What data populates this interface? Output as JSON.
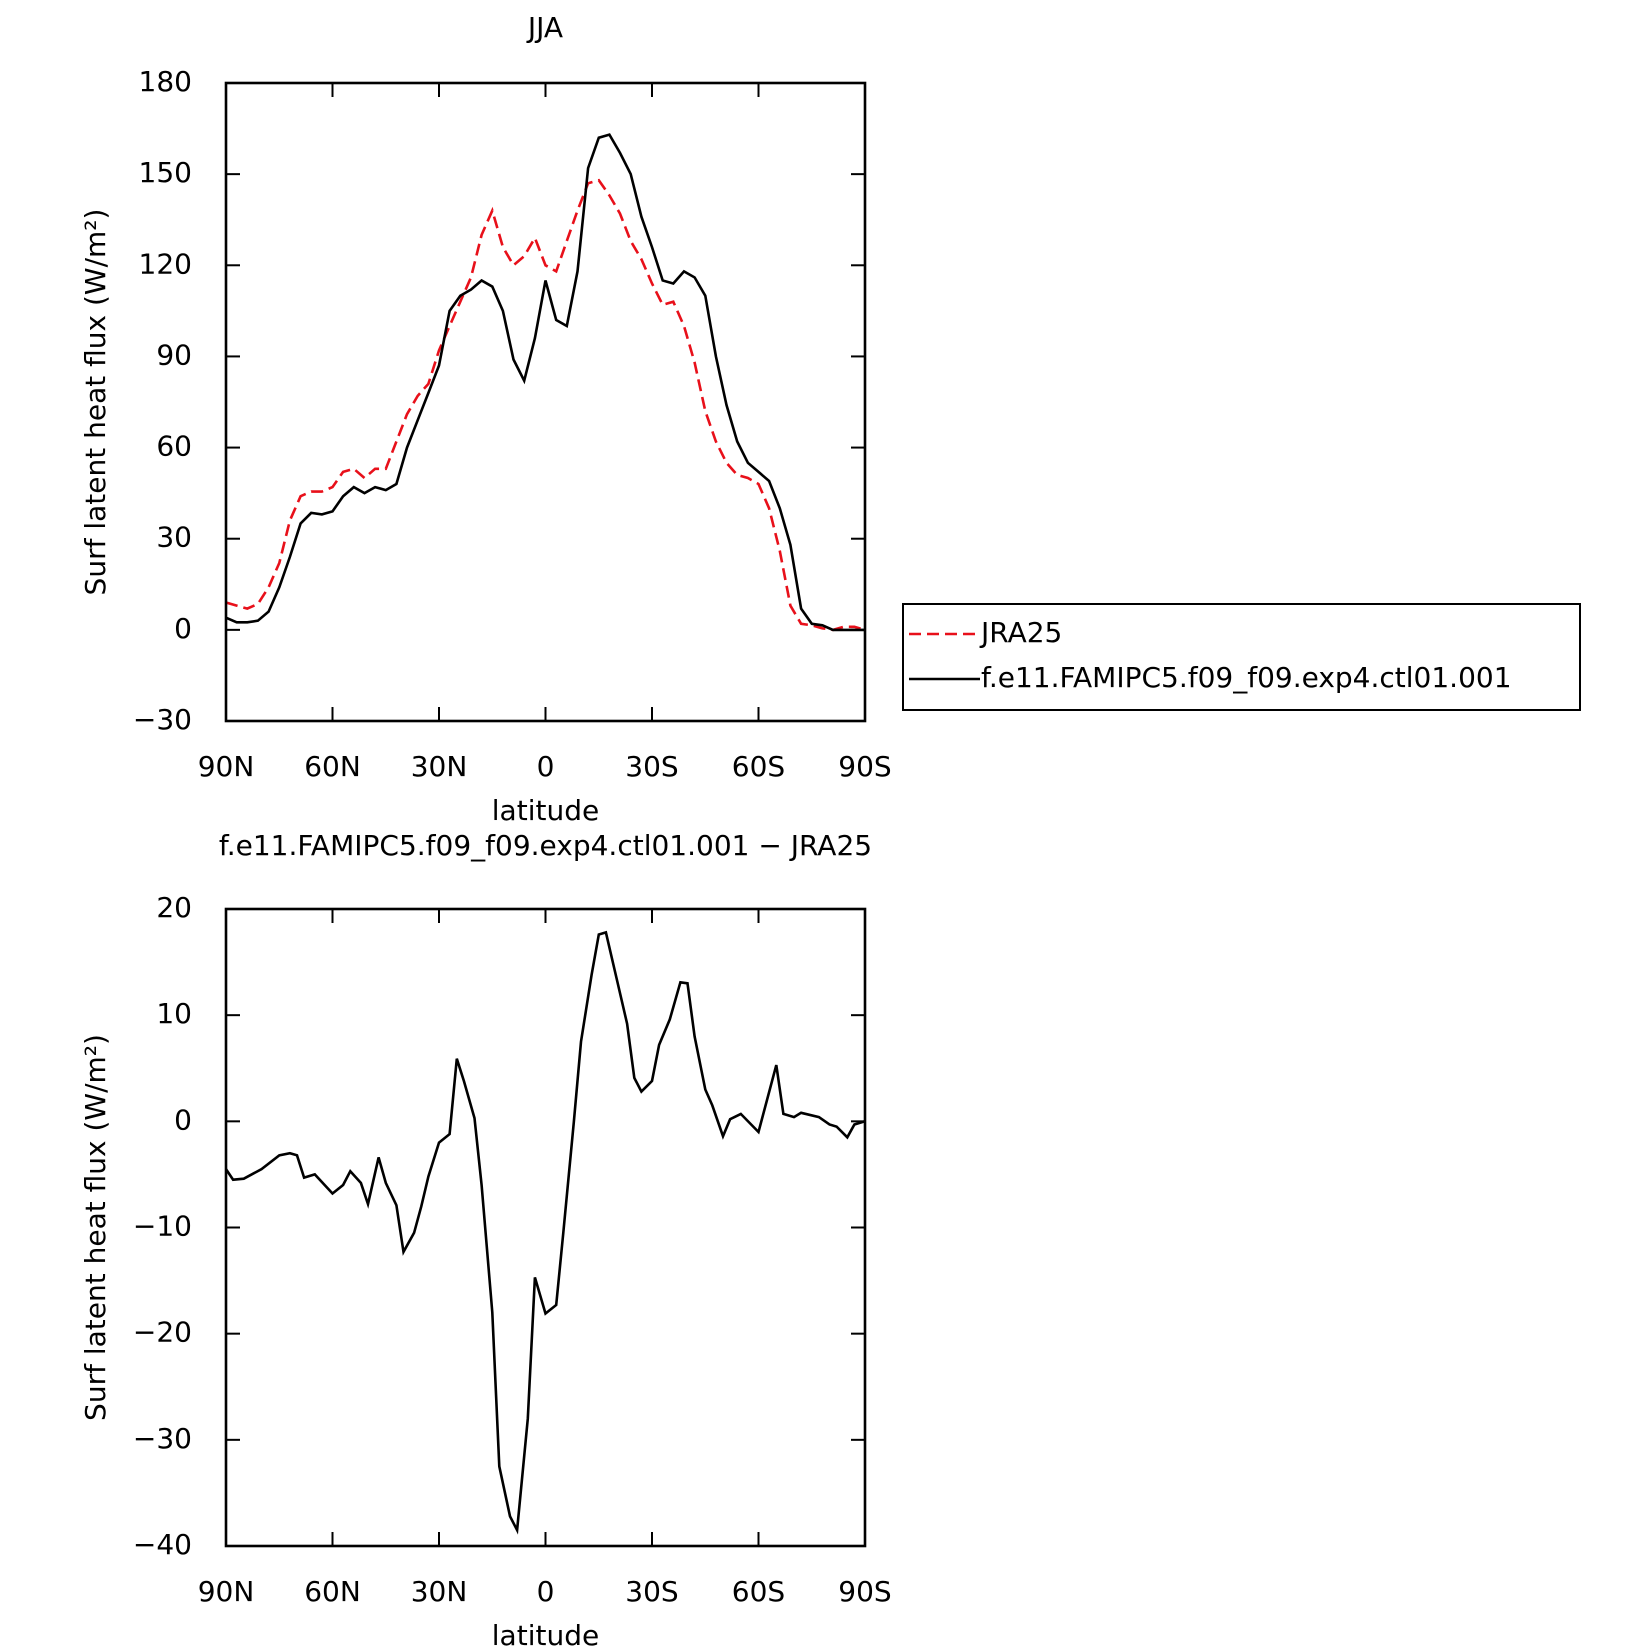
{
  "chart_data": [
    {
      "type": "line",
      "title": "JJA",
      "ylabel": "Surf latent heat flux (W/m²)",
      "xlabel": "latitude",
      "xlim": [
        90,
        -90
      ],
      "xticks": [
        {
          "value": 90,
          "label": "90N"
        },
        {
          "value": 60,
          "label": "60N"
        },
        {
          "value": 30,
          "label": "30N"
        },
        0,
        {
          "value": -30,
          "label": "30S"
        },
        {
          "value": -60,
          "label": "60S"
        },
        {
          "value": -90,
          "label": "90S"
        }
      ],
      "ylim": [
        -30,
        180
      ],
      "yticks": [
        {
          "value": -30,
          "label": "−30"
        },
        0,
        30,
        60,
        90,
        120,
        150,
        180
      ],
      "x": [
        90,
        87,
        84,
        81,
        78,
        75,
        72,
        69,
        66,
        63,
        60,
        57,
        54,
        51,
        48,
        45,
        42,
        39,
        36,
        33,
        30,
        27,
        24,
        21,
        18,
        15,
        12,
        9,
        6,
        3,
        0,
        -3,
        -6,
        -9,
        -12,
        -15,
        -18,
        -21,
        -24,
        -27,
        -30,
        -33,
        -36,
        -39,
        -42,
        -45,
        -48,
        -51,
        -54,
        -57,
        -60,
        -63,
        -66,
        -69,
        -72,
        -75,
        -78,
        -81,
        -84,
        -87,
        -90
      ],
      "series": [
        {
          "name": "JRA25",
          "color": "#e8101a",
          "dashed": true,
          "values": [
            9,
            8,
            7,
            8.5,
            14,
            22,
            36,
            44,
            45.5,
            45.5,
            47,
            52,
            53,
            50,
            53,
            53,
            62,
            71,
            77,
            81,
            92,
            100,
            108,
            116,
            130,
            138,
            126,
            120,
            123,
            129,
            120,
            118,
            128,
            138,
            147,
            148,
            143,
            137,
            128,
            122,
            114,
            107,
            108,
            100,
            88,
            72,
            62,
            55,
            51,
            50,
            48,
            40,
            26,
            8,
            2,
            1.5,
            0.5,
            0,
            1,
            1,
            0
          ]
        },
        {
          "name": "f.e11.FAMIPC5.f09_f09.exp4.ctl01.001",
          "color": "#000000",
          "dashed": false,
          "values": [
            4,
            2.5,
            2.5,
            3,
            6,
            14,
            24,
            35,
            38.5,
            38,
            39,
            44,
            47,
            45,
            47,
            46,
            48,
            60,
            69,
            78,
            87,
            105,
            110,
            112,
            115,
            113,
            105,
            89,
            82,
            96,
            115,
            102,
            100,
            118,
            152,
            162,
            163,
            157,
            150,
            136,
            126,
            115,
            114,
            118,
            116,
            110,
            90,
            74,
            62,
            55,
            52,
            49,
            40,
            28,
            7,
            2,
            1.5,
            0,
            0,
            0,
            0
          ]
        }
      ],
      "legend": "right"
    },
    {
      "type": "line",
      "title": "f.e11.FAMIPC5.f09_f09.exp4.ctl01.001 − JRA25",
      "ylabel": "Surf latent heat flux (W/m²)",
      "xlabel": "latitude",
      "xlim": [
        90,
        -90
      ],
      "xticks": [
        {
          "value": 90,
          "label": "90N"
        },
        {
          "value": 60,
          "label": "60N"
        },
        {
          "value": 30,
          "label": "30N"
        },
        0,
        {
          "value": -30,
          "label": "30S"
        },
        {
          "value": -60,
          "label": "60S"
        },
        {
          "value": -90,
          "label": "90S"
        }
      ],
      "ylim": [
        -40,
        20
      ],
      "yticks": [
        {
          "value": -40,
          "label": "−40"
        },
        {
          "value": -30,
          "label": "−30"
        },
        {
          "value": -20,
          "label": "−20"
        },
        {
          "value": -10,
          "label": "−10"
        },
        0,
        10,
        20
      ],
      "x": [
        90,
        88,
        85,
        80,
        75,
        72,
        70,
        68,
        65,
        60,
        57,
        55,
        52,
        50,
        47,
        45,
        42,
        40,
        37,
        35,
        33,
        30,
        27,
        25,
        23,
        20,
        18,
        15,
        13,
        10,
        8,
        5,
        3,
        0,
        -3,
        -5,
        -8,
        -10,
        -13,
        -15,
        -17,
        -20,
        -23,
        -25,
        -27,
        -30,
        -32,
        -35,
        -38,
        -40,
        -42,
        -45,
        -47,
        -50,
        -52,
        -55,
        -60,
        -65,
        -67,
        -70,
        -72,
        -77,
        -80,
        -82,
        -85,
        -87,
        -90
      ],
      "series": [
        {
          "color": "#000000",
          "dashed": false,
          "values": [
            -4.5,
            -5.5,
            -5.4,
            -4.5,
            -3.2,
            -3,
            -3.2,
            -5.3,
            -5,
            -6.8,
            -6,
            -4.7,
            -5.8,
            -7.8,
            -3.4,
            -5.8,
            -7.9,
            -12.3,
            -10.5,
            -8,
            -5.2,
            -2,
            -1.2,
            5.9,
            3.8,
            0.3,
            -6,
            -18,
            -32.5,
            -37.2,
            -38.5,
            -28,
            -14.7,
            -18.1,
            -17.3,
            -10.5,
            0,
            7.5,
            13.8,
            17.6,
            17.8,
            13.5,
            9.2,
            4.1,
            2.8,
            3.8,
            7.2,
            9.6,
            13.1,
            13,
            8,
            3,
            1.5,
            -1.4,
            0.2,
            0.7,
            -1,
            5.3,
            0.7,
            0.4,
            0.8,
            0.4,
            -0.3,
            -0.5,
            -1.5,
            -0.3,
            0
          ]
        }
      ]
    }
  ]
}
